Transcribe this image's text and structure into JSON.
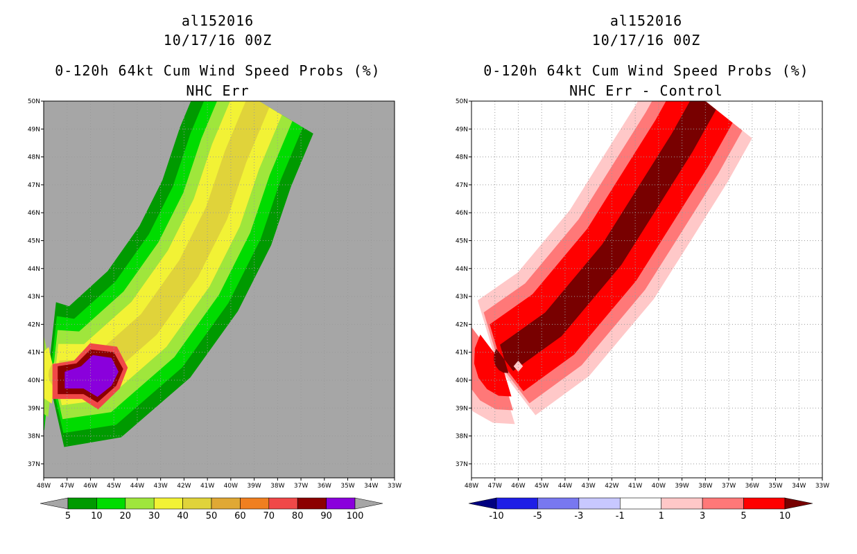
{
  "left": {
    "title": {
      "storm": "al152016",
      "date": "10/17/16 00Z",
      "product": "0-120h 64kt Cum Wind Speed Probs (%)",
      "subtitle": "NHC Err"
    }
  },
  "right": {
    "title": {
      "storm": "al152016",
      "date": "10/17/16 00Z",
      "product": "0-120h 64kt Cum Wind Speed Probs (%)",
      "subtitle": "NHC Err - Control"
    }
  },
  "chart_data": [
    {
      "type": "heatmap",
      "title": "0-120h 64kt Cum Wind Speed Probs (%)",
      "subtitle": "NHC Err",
      "xlim": [
        -48,
        -33
      ],
      "ylim": [
        36.5,
        50
      ],
      "x_ticks": [
        "48W",
        "47W",
        "46W",
        "45W",
        "44W",
        "43W",
        "42W",
        "41W",
        "40W",
        "39W",
        "38W",
        "37W",
        "36W",
        "35W",
        "34W",
        "33W"
      ],
      "y_ticks": [
        "37N",
        "38N",
        "39N",
        "40N",
        "41N",
        "42N",
        "43N",
        "44N",
        "45N",
        "46N",
        "47N",
        "48N",
        "49N",
        "50N"
      ],
      "grid": true,
      "background_color": "#a6a6a6",
      "colorbar_levels": [
        "5",
        "10",
        "20",
        "30",
        "40",
        "50",
        "60",
        "70",
        "80",
        "90",
        "100"
      ],
      "colorbar_colors": [
        "#a6a6a6",
        "#009a00",
        "#00dc00",
        "#9fe63c",
        "#f2f235",
        "#e0d33a",
        "#e0a834",
        "#f07f20",
        "#f04848",
        "#8c0000",
        "#8a00dc",
        "#a6a6a6"
      ],
      "track_centerline": [
        [
          -47.3,
          40.2
        ],
        [
          -45.8,
          40.3
        ],
        [
          -43.5,
          42.0
        ],
        [
          -41.8,
          44.0
        ],
        [
          -40.6,
          46.0
        ],
        [
          -39.8,
          48.0
        ],
        [
          -38.8,
          50.0
        ]
      ],
      "bands": [
        {
          "min": 5,
          "color": "#009a00",
          "halfwidth_deg": 2.6
        },
        {
          "min": 10,
          "color": "#00dc00",
          "halfwidth_deg": 2.1
        },
        {
          "min": 20,
          "color": "#9fe63c",
          "halfwidth_deg": 1.6
        },
        {
          "min": 30,
          "color": "#f2f235",
          "halfwidth_deg": 1.1
        },
        {
          "min": 40,
          "color": "#e0d33a",
          "halfwidth_deg": 0.5
        }
      ]
    },
    {
      "type": "heatmap",
      "title": "0-120h 64kt Cum Wind Speed Probs (%)",
      "subtitle": "NHC Err - Control",
      "xlim": [
        -48,
        -33
      ],
      "ylim": [
        36.5,
        50
      ],
      "x_ticks": [
        "48W",
        "47W",
        "46W",
        "45W",
        "44W",
        "43W",
        "42W",
        "41W",
        "40W",
        "39W",
        "38W",
        "37W",
        "36W",
        "35W",
        "34W",
        "33W"
      ],
      "y_ticks": [
        "37N",
        "38N",
        "39N",
        "40N",
        "41N",
        "42N",
        "43N",
        "44N",
        "45N",
        "46N",
        "47N",
        "48N",
        "49N",
        "50N"
      ],
      "grid": true,
      "background_color": "#ffffff",
      "colorbar_levels": [
        "-10",
        "-5",
        "-3",
        "-1",
        "1",
        "3",
        "5",
        "10"
      ],
      "colorbar_colors": [
        "#000080",
        "#1e1ee6",
        "#7878f0",
        "#c8c8ff",
        "#ffffff",
        "#ffc8c8",
        "#ff7878",
        "#ff0000",
        "#780000"
      ],
      "track_centerline": [
        [
          -46.5,
          40.8
        ],
        [
          -44.5,
          42.0
        ],
        [
          -42.0,
          44.5
        ],
        [
          -40.5,
          46.5
        ],
        [
          -39.0,
          48.5
        ],
        [
          -38.0,
          50.0
        ]
      ],
      "bands": [
        {
          "min": 1,
          "color": "#ffc8c8",
          "halfwidth_deg": 2.4
        },
        {
          "min": 3,
          "color": "#ff7878",
          "halfwidth_deg": 1.9
        },
        {
          "min": 5,
          "color": "#ff0000",
          "halfwidth_deg": 1.4
        },
        {
          "min": 10,
          "color": "#780000",
          "halfwidth_deg": 0.55
        }
      ]
    }
  ]
}
